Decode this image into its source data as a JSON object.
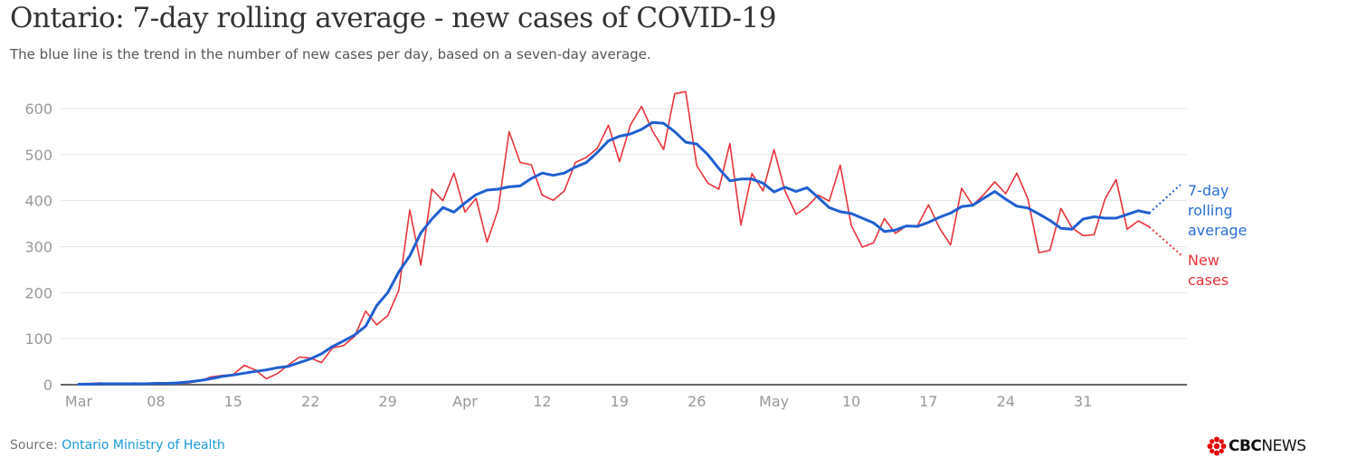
{
  "header": {
    "title": "Ontario: 7-day rolling average - new cases of COVID-19",
    "subtitle": "The blue line is the trend in the number of new cases per day, based on a seven-day average."
  },
  "footer": {
    "source_label": "Source: ",
    "source_link": "Ontario Ministry of Health",
    "logo_text_bold": "CBC",
    "logo_text_light": "NEWS"
  },
  "chart_data": {
    "type": "line",
    "title": "Ontario: 7-day rolling average - new cases of COVID-19",
    "xlabel": "",
    "ylabel": "",
    "ylim": [
      0,
      600
    ],
    "yticks": [
      0,
      100,
      200,
      300,
      400,
      500,
      600
    ],
    "grid": true,
    "x_start": "Mar 01",
    "x_tick_labels": [
      {
        "day_index": 0,
        "label": "Mar"
      },
      {
        "day_index": 7,
        "label": "08"
      },
      {
        "day_index": 14,
        "label": "15"
      },
      {
        "day_index": 21,
        "label": "22"
      },
      {
        "day_index": 28,
        "label": "29"
      },
      {
        "day_index": 35,
        "label": "Apr"
      },
      {
        "day_index": 42,
        "label": "12"
      },
      {
        "day_index": 49,
        "label": "19"
      },
      {
        "day_index": 56,
        "label": "26"
      },
      {
        "day_index": 63,
        "label": "May"
      },
      {
        "day_index": 70,
        "label": "10"
      },
      {
        "day_index": 77,
        "label": "17"
      },
      {
        "day_index": 84,
        "label": "24"
      },
      {
        "day_index": 91,
        "label": "31"
      }
    ],
    "series": [
      {
        "name": "New cases",
        "legend_lines": [
          "New",
          "cases"
        ],
        "color": "#e8333a",
        "values": [
          2,
          3,
          4,
          1,
          2,
          4,
          1,
          3,
          2,
          3,
          4,
          8,
          17,
          20,
          22,
          42,
          32,
          13,
          24,
          43,
          60,
          58,
          48,
          80,
          85,
          105,
          160,
          130,
          150,
          205,
          380,
          260,
          425,
          400,
          460,
          375,
          405,
          310,
          380,
          550,
          483,
          478,
          412,
          401,
          421,
          483,
          494,
          514,
          564,
          485,
          565,
          605,
          551,
          511,
          632,
          637,
          476,
          438,
          425,
          524,
          347,
          459,
          421,
          511,
          421,
          370,
          387,
          412,
          399,
          477,
          346,
          299,
          308,
          361,
          329,
          345,
          345,
          391,
          340,
          304,
          427,
          390,
          413,
          441,
          415,
          460,
          404,
          287,
          292,
          383,
          341,
          324,
          326,
          404,
          446,
          338,
          356,
          343
        ]
      },
      {
        "name": "7-day rolling average",
        "legend_lines": [
          "7-day",
          "rolling",
          "average"
        ],
        "color": "#1f5fd0",
        "values": [
          1,
          1,
          2,
          2,
          2,
          2,
          2,
          3,
          3,
          4,
          6,
          9,
          13,
          18,
          21,
          25,
          29,
          32,
          37,
          40,
          48,
          56,
          67,
          83,
          95,
          108,
          127,
          172,
          200,
          245,
          280,
          330,
          360,
          385,
          375,
          395,
          413,
          423,
          425,
          430,
          432,
          448,
          460,
          455,
          460,
          473,
          483,
          505,
          530,
          540,
          545,
          555,
          570,
          568,
          550,
          527,
          523,
          500,
          470,
          443,
          447,
          447,
          438,
          419,
          429,
          420,
          428,
          407,
          385,
          376,
          372,
          362,
          352,
          333,
          336,
          345,
          344,
          353,
          364,
          373,
          387,
          390,
          405,
          420,
          403,
          388,
          384,
          371,
          357,
          340,
          338,
          360,
          365,
          362,
          362,
          370,
          378,
          373
        ]
      }
    ]
  }
}
